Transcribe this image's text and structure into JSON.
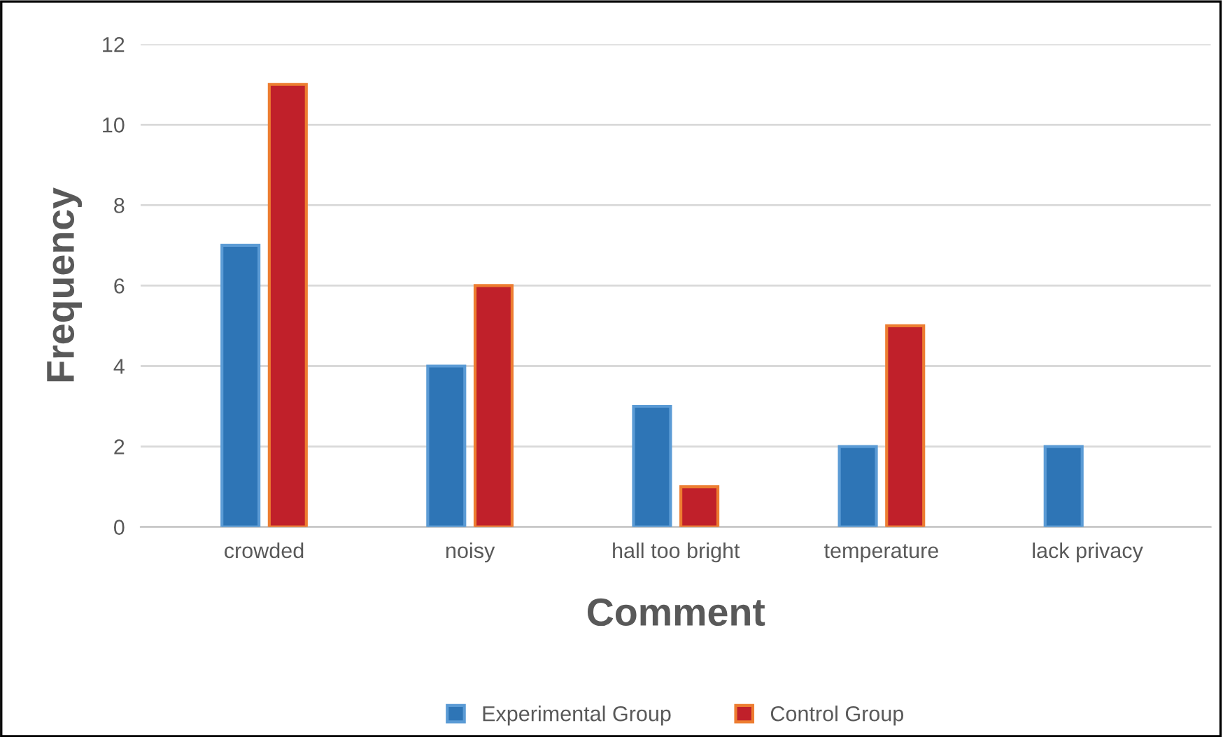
{
  "chart_data": {
    "type": "bar",
    "xlabel": "Comment",
    "ylabel": "Frequency",
    "categories": [
      "crowded",
      "noisy",
      "hall too bright",
      "temperature",
      "lack privacy"
    ],
    "series": [
      {
        "name": "Experimental Group",
        "color": "#2e75b6",
        "values": [
          7,
          4,
          3,
          2,
          2
        ]
      },
      {
        "name": "Control Group",
        "color": "#c0202a",
        "values": [
          11,
          6,
          1,
          5,
          null
        ]
      }
    ],
    "ylim": [
      0,
      12
    ],
    "yticks": [
      0,
      2,
      4,
      6,
      8,
      10,
      12
    ],
    "grid": "y",
    "legend": "bottom"
  }
}
